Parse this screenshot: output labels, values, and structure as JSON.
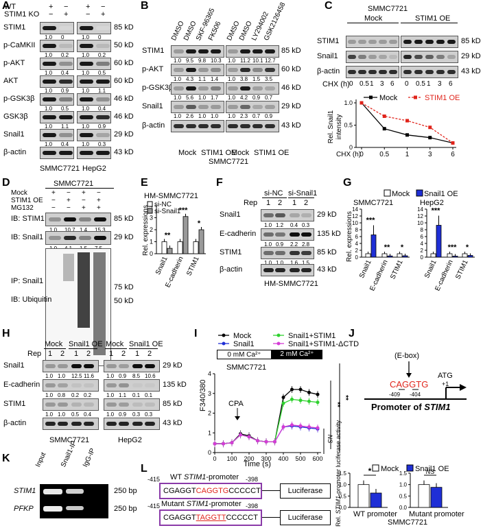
{
  "panels": {
    "A": {
      "label": "A",
      "cond_rows": [
        {
          "name": "WT",
          "signs": [
            "+",
            "−",
            "+",
            "−"
          ]
        },
        {
          "name": "STIM1 KO",
          "signs": [
            "−",
            "+",
            "−",
            "+"
          ]
        }
      ],
      "rows": [
        {
          "name": "STIM1",
          "kd": "85 kD",
          "q": [
            "1.0",
            "0",
            "1.0",
            "0"
          ]
        },
        {
          "name": "p-CaMKII",
          "kd": "50 kD",
          "q": [
            "1.0",
            "0.2",
            "1.0",
            "0.2"
          ]
        },
        {
          "name": "p-AKT",
          "kd": "60 kD",
          "q": [
            "1.0",
            "0.4",
            "1.0",
            "0.5"
          ]
        },
        {
          "name": "AKT",
          "kd": "60 kD",
          "q": [
            "1.0",
            "0.9",
            "1.0",
            "1.1"
          ]
        },
        {
          "name": "p-GSK3β",
          "kd": "46 kD",
          "q": [
            "1.0",
            "0.5",
            "1.0",
            "0.4"
          ]
        },
        {
          "name": "GSK3β",
          "kd": "46 kD",
          "q": [
            "1.0",
            "1.1",
            "1.0",
            "0.9"
          ]
        },
        {
          "name": "Snail1",
          "kd": "29 kD",
          "q": [
            "1.0",
            "0.4",
            "1.0",
            "0.3"
          ]
        },
        {
          "name": "β-actin",
          "kd": "43 kD",
          "q": []
        }
      ],
      "cells": [
        "SMMC7721",
        "HepG2"
      ]
    },
    "B": {
      "label": "B",
      "treatments": [
        "DMSO",
        "DMSO",
        "SKF-96365",
        "FK506",
        "DMSO",
        "DMSO",
        "LY294002",
        "GSK2126458"
      ],
      "rows": [
        {
          "name": "STIM1",
          "kd": "85 kD",
          "q": [
            "1.0",
            "9.5",
            "9.8",
            "10.3",
            "1.0",
            "11.2",
            "10.1",
            "12.7"
          ]
        },
        {
          "name": "p-AKT",
          "kd": "60 kD",
          "q": [
            "1.0",
            "4.3",
            "1.1",
            "1.4",
            "1.0",
            "3.8",
            "1.5",
            "3.5"
          ]
        },
        {
          "name": "p-GSK3β",
          "kd": "46 kD",
          "q": [
            "1.0",
            "5.6",
            "1.0",
            "1.7",
            "1.0",
            "4.2",
            "0.9",
            "0.7"
          ]
        },
        {
          "name": "Snail1",
          "kd": "29 kD",
          "q": [
            "1.0",
            "2.6",
            "1.0",
            "1.0",
            "1.0",
            "2.3",
            "0.7",
            "0.9"
          ]
        },
        {
          "name": "β-actin",
          "kd": "43 kD",
          "q": []
        }
      ],
      "groups": [
        "Mock",
        "STIM1 OE",
        "Mock",
        "STIM1 OE"
      ],
      "cell": "SMMC7721"
    },
    "C": {
      "label": "C",
      "cell": "SMMC7721",
      "groups": [
        "Mock",
        "STIM1 OE"
      ],
      "rows": [
        {
          "name": "STIM1",
          "kd": "85 kD"
        },
        {
          "name": "Snail1",
          "kd": "29 kD"
        },
        {
          "name": "β-actin",
          "kd": "43 kD"
        }
      ],
      "chx_label": "CHX (h)",
      "chx": [
        "0",
        "0.5",
        "1",
        "3",
        "6",
        "0",
        "0.5",
        "1",
        "3",
        "6"
      ]
    },
    "D": {
      "label": "D",
      "cell": "SMMC7721",
      "cond_rows": [
        {
          "name": "Mock",
          "signs": [
            "+",
            "−",
            "+",
            "−"
          ]
        },
        {
          "name": "STIM1 OE",
          "signs": [
            "−",
            "+",
            "−",
            "+"
          ]
        },
        {
          "name": "MG132",
          "signs": [
            "−",
            "−",
            "+",
            "+"
          ]
        }
      ],
      "rows": [
        {
          "name": "IB: STIM1",
          "kd": "85 kD",
          "q": [
            "1.0",
            "10.7",
            "1.4",
            "15.3"
          ]
        },
        {
          "name": "IB: Snail1",
          "kd": "29 kD",
          "q": [
            "1.0",
            "4.1",
            "1.5",
            "7.5"
          ]
        }
      ],
      "ip_label": "IP: Snail1",
      "ib_label": "IB: Ubiquitin",
      "ip_kd": [
        "75 kD",
        "50 kD"
      ]
    },
    "E": {
      "label": "E",
      "cell": "HM-SMMC7721",
      "legend": [
        "si-NC",
        "si-Snail1"
      ],
      "ylabel": "Rel. expressions",
      "cats": [
        "Snail1",
        "E-cadherin",
        "STIM1"
      ],
      "sig": [
        "**",
        "***",
        "*"
      ]
    },
    "F": {
      "label": "F",
      "groups": [
        "si-NC",
        "si-Snail1"
      ],
      "rep_label": "Rep",
      "reps": [
        "1",
        "2",
        "1",
        "2"
      ],
      "rows": [
        {
          "name": "Snail1",
          "kd": "29 kD",
          "q": [
            "1.0",
            "1.2",
            "0.4",
            "0.3"
          ]
        },
        {
          "name": "E-cadherin",
          "kd": "135 kD",
          "q": [
            "1.0",
            "0.9",
            "2.2",
            "2.8"
          ]
        },
        {
          "name": "STIM1",
          "kd": "85 kD",
          "q": [
            "1.0",
            "1.0",
            "1.6",
            "1.5"
          ]
        },
        {
          "name": "β-actin",
          "kd": "43 kD",
          "q": []
        }
      ],
      "cell": "HM-SMMC7721"
    },
    "G": {
      "label": "G",
      "legend": [
        "Mock",
        "Snail1 OE"
      ],
      "cells": [
        "SMMC7721",
        "HepG2"
      ],
      "ylabel": "Rel. expressions",
      "cats": [
        "Snail1",
        "E-cadherin",
        "STIM1"
      ],
      "sig1": [
        "***",
        "**",
        "*"
      ],
      "sig2": [
        "***",
        "***",
        "*"
      ]
    },
    "H": {
      "label": "H",
      "groups": [
        "Mock",
        "Snail1 OE",
        "Mock",
        "Snail1 OE"
      ],
      "rep_label": "Rep",
      "reps": [
        "1",
        "2",
        "1",
        "2",
        "1",
        "2",
        "1",
        "2"
      ],
      "rows": [
        {
          "name": "Snail1",
          "kd": "29 kD",
          "q": [
            "1.0",
            "1.0",
            "12.5",
            "11.6",
            "1.0",
            "0.9",
            "8.5",
            "10.6"
          ]
        },
        {
          "name": "E-cadherin",
          "kd": "135 kD",
          "q": [
            "1.0",
            "0.8",
            "0.2",
            "0.2",
            "1.0",
            "1.1",
            "0.1",
            "0.1"
          ]
        },
        {
          "name": "STIM1",
          "kd": "85 kD",
          "q": [
            "1.0",
            "1.0",
            "0.5",
            "0.4",
            "1.0",
            "0.9",
            "0.3",
            "0.3"
          ]
        },
        {
          "name": "β-actin",
          "kd": "43 kD",
          "q": []
        }
      ],
      "cells": [
        "SMMC7721",
        "HepG2"
      ]
    },
    "I": {
      "label": "I",
      "legend": [
        "Mock",
        "Snail1",
        "Snail1+STIM1",
        "Snail1+STIM1-ΔCTD"
      ],
      "bath": [
        "0 mM Ca²⁺",
        "2 mM Ca²⁺"
      ],
      "cell": "SMMC7721",
      "cpa": "CPA",
      "ylabel": "F340/380",
      "xlabel": "Time (s)",
      "sig": [
        "NS",
        "**",
        "**"
      ]
    },
    "J": {
      "label": "J",
      "ebox": "(E-box)",
      "seq": "CAGGTG",
      "pos1": "-409",
      "pos2": "-404",
      "atg": "ATG",
      "plus1": "+1",
      "promoter_prefix": "Promoter of ",
      "promoter_gene": "STIM1"
    },
    "K": {
      "label": "K",
      "lanes": [
        "Input",
        "Snail1-IP",
        "IgG-IP"
      ],
      "genes": [
        "STIM1",
        "PFKP"
      ],
      "bp": "250 bp"
    },
    "L": {
      "label": "L",
      "wt_title_pre": "WT ",
      "wt_title_gene": "STIM1",
      "wt_title_post": "-promoter",
      "mut_title_pre": "Mutant ",
      "mut_title_gene": "STIM1",
      "mut_title_post": "-promoter",
      "start": "-415",
      "end": "-398",
      "wt_seq": [
        "CGAGGT",
        "CAGGTG",
        "CCCCCT"
      ],
      "mut_seq": [
        "CGAGGT",
        "TAGGTT",
        "CCCCCT"
      ],
      "luc": "Luciferase",
      "legend": [
        "Mock",
        "Snail1 OE"
      ],
      "ylabel_pre": "Rel. ",
      "ylabel_gene": "STIM1",
      "ylabel_post": "-promoter luciferase activity",
      "xcats": [
        "WT promoter",
        "Mutant promoter"
      ],
      "cell": "SMMC7721",
      "sig": [
        "*",
        "NS"
      ]
    }
  },
  "colors": {
    "blue": "#1f2fd6",
    "red": "#e0241b",
    "green": "#2fd12f",
    "magenta": "#d53cd6",
    "gray": "#9a9a9a"
  },
  "chart_data": [
    {
      "type": "line",
      "panel": "C",
      "title": "",
      "xlabel": "CHX (h)",
      "ylabel": "Rel. Snail1 intensity",
      "x": [
        0,
        0.5,
        1,
        3,
        6
      ],
      "ylim": [
        0,
        1.0
      ],
      "series": [
        {
          "name": "Mock",
          "values": [
            1.0,
            0.42,
            0.28,
            0.22,
            0.1
          ]
        },
        {
          "name": "STIM1 OE",
          "values": [
            1.0,
            0.7,
            0.6,
            0.45,
            0.1
          ]
        }
      ]
    },
    {
      "type": "bar",
      "panel": "E",
      "title": "HM-SMMC7721",
      "ylabel": "Rel. expressions",
      "categories": [
        "Snail1",
        "E-cadherin",
        "STIM1"
      ],
      "ylim": [
        0,
        4
      ],
      "series": [
        {
          "name": "si-NC",
          "values": [
            1.0,
            1.0,
            1.0
          ]
        },
        {
          "name": "si-Snail1",
          "values": [
            0.45,
            3.1,
            2.0
          ]
        }
      ]
    },
    {
      "type": "bar",
      "panel": "G",
      "title": "SMMC7721",
      "ylabel": "Rel. expressions",
      "categories": [
        "Snail1",
        "E-cadherin",
        "STIM1"
      ],
      "ylim": [
        0,
        14
      ],
      "series": [
        {
          "name": "Mock",
          "values": [
            1.0,
            1.0,
            1.0
          ]
        },
        {
          "name": "Snail1 OE",
          "values": [
            6.5,
            0.35,
            0.4
          ]
        }
      ]
    },
    {
      "type": "bar",
      "panel": "G",
      "title": "HepG2",
      "ylabel": "Rel. expressions",
      "categories": [
        "Snail1",
        "E-cadherin",
        "STIM1"
      ],
      "ylim": [
        0,
        14
      ],
      "series": [
        {
          "name": "Mock",
          "values": [
            1.0,
            1.0,
            1.0
          ]
        },
        {
          "name": "Snail1 OE",
          "values": [
            9.3,
            0.3,
            0.5
          ]
        }
      ]
    },
    {
      "type": "line",
      "panel": "I",
      "title": "SMMC7721",
      "xlabel": "Time (s)",
      "ylabel": "F340/380",
      "x": [
        0,
        50,
        100,
        150,
        200,
        250,
        300,
        350,
        400,
        450,
        500,
        550,
        600
      ],
      "ylim": [
        0,
        4
      ],
      "series": [
        {
          "name": "Mock",
          "values": [
            0.45,
            0.45,
            0.5,
            0.95,
            0.85,
            0.6,
            0.55,
            0.55,
            2.8,
            3.2,
            3.2,
            3.05,
            2.95
          ]
        },
        {
          "name": "Snail1",
          "values": [
            0.45,
            0.45,
            0.5,
            0.9,
            0.8,
            0.6,
            0.55,
            0.55,
            1.3,
            1.35,
            1.3,
            1.25,
            1.2
          ]
        },
        {
          "name": "Snail1+STIM1",
          "values": [
            0.45,
            0.45,
            0.5,
            0.9,
            0.8,
            0.6,
            0.55,
            0.55,
            2.5,
            2.7,
            2.65,
            2.6,
            2.55
          ]
        },
        {
          "name": "Snail1+STIM1-ΔCTD",
          "values": [
            0.45,
            0.45,
            0.5,
            0.9,
            0.8,
            0.6,
            0.55,
            0.55,
            1.3,
            1.4,
            1.35,
            1.3,
            1.25
          ]
        }
      ],
      "xticks": [
        0,
        100,
        200,
        300,
        400,
        500,
        600
      ],
      "yticks": [
        0,
        1,
        2,
        3,
        4
      ]
    },
    {
      "type": "bar",
      "panel": "L",
      "ylabel": "Rel. STIM1-promoter luciferase activity",
      "categories": [
        "WT promoter",
        "Mutant promoter"
      ],
      "ylim": [
        0,
        1.5
      ],
      "series": [
        {
          "name": "Mock",
          "values": [
            1.0,
            1.0
          ]
        },
        {
          "name": "Snail1 OE",
          "values": [
            0.63,
            0.88
          ]
        }
      ]
    }
  ]
}
